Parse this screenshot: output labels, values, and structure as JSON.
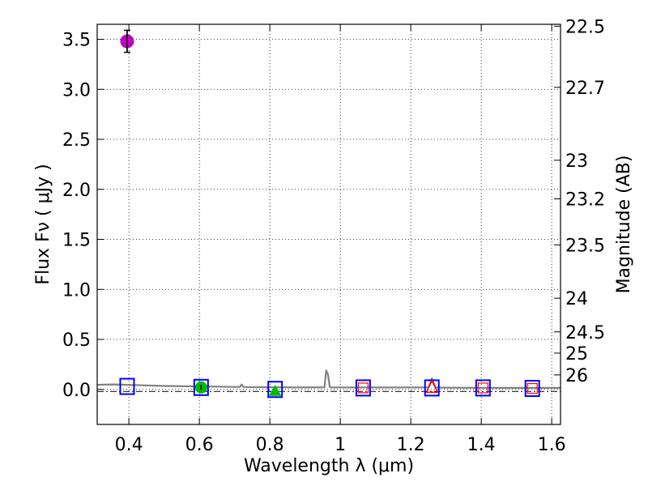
{
  "chart_data": {
    "type": "scatter",
    "title": "",
    "xlabel": "Wavelength  λ (μm)",
    "ylabel": "Flux  Fν  ( μJy )",
    "ylabel_right": "Magnitude (AB)",
    "xlim": [
      0.31,
      1.625
    ],
    "ylim": [
      -0.35,
      3.65
    ],
    "grid": true,
    "x_ticks": [
      0.4,
      0.6,
      0.8,
      1.0,
      1.2,
      1.4,
      1.6
    ],
    "x_tick_labels": [
      "0.4",
      "0.6",
      "0.8",
      "1",
      "1.2",
      "1.4",
      "1.6"
    ],
    "y_ticks": [
      0.0,
      0.5,
      1.0,
      1.5,
      2.0,
      2.5,
      3.0,
      3.5
    ],
    "y_tick_labels": [
      "0.0",
      "0.5",
      "1.0",
      "1.5",
      "2.0",
      "2.5",
      "3.0",
      "3.5"
    ],
    "right_ticks": [
      {
        "label": "22.5",
        "flux": 3.631
      },
      {
        "label": "22.7",
        "flux": 3.02
      },
      {
        "label": "23",
        "flux": 2.291
      },
      {
        "label": "23.2",
        "flux": 1.905
      },
      {
        "label": "23.5",
        "flux": 1.445
      },
      {
        "label": "24",
        "flux": 0.912
      },
      {
        "label": "24.5",
        "flux": 0.575
      },
      {
        "label": "25",
        "flux": 0.363
      },
      {
        "label": "26",
        "flux": 0.145
      }
    ],
    "series": [
      {
        "name": "template-spectrum",
        "style": "line",
        "color": "#808080",
        "x": [
          0.31,
          0.33,
          0.36,
          0.4,
          0.45,
          0.5,
          0.55,
          0.6,
          0.65,
          0.7,
          0.715,
          0.72,
          0.725,
          0.73,
          0.8,
          0.9,
          0.955,
          0.96,
          0.965,
          0.97,
          0.975,
          1.0,
          1.1,
          1.2,
          1.25,
          1.26,
          1.27,
          1.3,
          1.4,
          1.5,
          1.625
        ],
        "y": [
          0.045,
          0.048,
          0.05,
          0.045,
          0.04,
          0.035,
          0.032,
          0.03,
          0.028,
          0.025,
          0.025,
          0.05,
          0.025,
          0.024,
          0.022,
          0.02,
          0.022,
          0.19,
          0.15,
          0.025,
          0.02,
          0.02,
          0.02,
          0.02,
          0.02,
          0.11,
          0.02,
          0.018,
          0.016,
          0.015,
          0.015
        ]
      },
      {
        "name": "model-photometry",
        "style": "open-square",
        "color": "#0000ff",
        "x": [
          0.395,
          0.605,
          0.815,
          1.065,
          1.26,
          1.405,
          1.545
        ],
        "y": [
          0.03,
          0.02,
          0.0,
          0.015,
          0.015,
          0.015,
          0.01
        ]
      },
      {
        "name": "measured-flux",
        "style": "filled-circle",
        "color": "#bf00bf",
        "x": [
          0.395
        ],
        "y": [
          3.48
        ],
        "yerr": [
          0.11
        ]
      },
      {
        "name": "measured-flux-green",
        "style": "filled-circle",
        "color": "#00bb00",
        "x": [
          0.605
        ],
        "y": [
          0.02
        ],
        "yerr": [
          0.025
        ]
      },
      {
        "name": "upper-limit-triangle",
        "style": "filled-triangle",
        "color": "#00bb00",
        "x": [
          0.815
        ],
        "y": [
          -0.02
        ]
      },
      {
        "name": "limit-square-red",
        "style": "open-square-small",
        "color": "#ff0000",
        "x": [
          1.065,
          1.405,
          1.545
        ],
        "y": [
          0.015,
          0.015,
          0.01
        ]
      },
      {
        "name": "limit-triangle-red",
        "style": "open-triangle",
        "color": "#ff0000",
        "x": [
          1.26
        ],
        "y": [
          0.02
        ]
      }
    ],
    "zero_line": {
      "y": -0.02,
      "style": "dash-dot",
      "color": "#000000"
    }
  }
}
